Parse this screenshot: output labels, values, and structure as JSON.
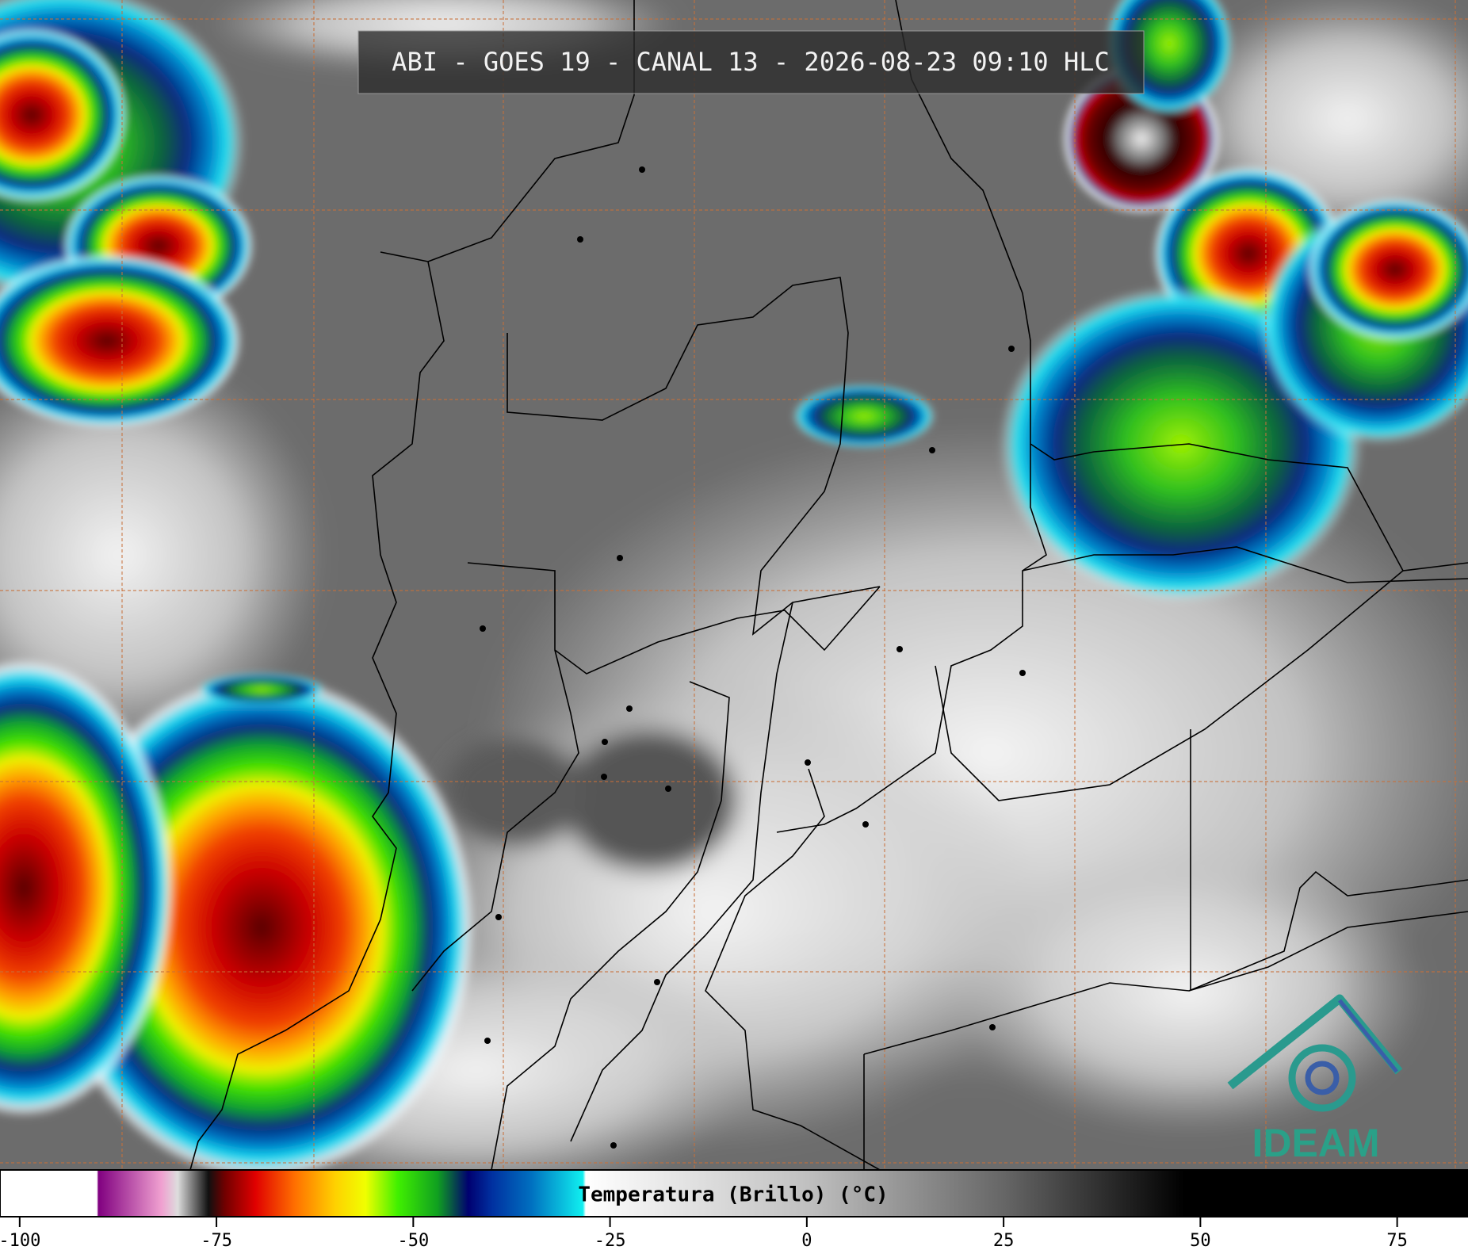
{
  "header": {
    "title": "ABI - GOES 19 - CANAL 13 - 2026-08-23 09:10 HLC"
  },
  "colorbar": {
    "label": "Temperatura (Brillo) (°C)",
    "lim": [
      -102.5,
      84
    ],
    "ticks": [
      -100,
      -75,
      -50,
      -25,
      0,
      25,
      50,
      75
    ]
  },
  "logo": {
    "text": "IDEAM"
  }
}
